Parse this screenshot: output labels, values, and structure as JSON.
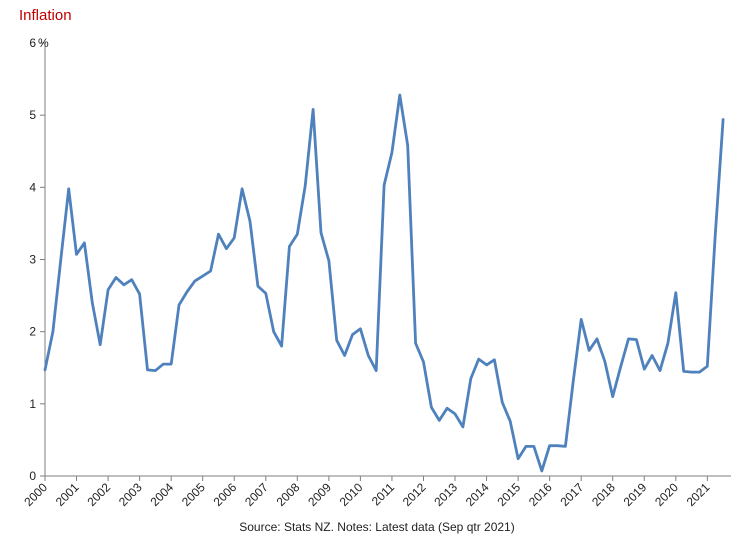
{
  "title": "Inflation",
  "source": "Source: Stats NZ. Notes: Latest data (Sep qtr 2021)",
  "colors": {
    "title": "#c00000",
    "line": "#4f81bd",
    "axis": "#7f7f7f"
  },
  "chart_data": {
    "type": "line",
    "title": "Inflation",
    "ylabel": "%",
    "xlabel": "",
    "ylim": [
      0,
      6
    ],
    "yticks": [
      0,
      1,
      2,
      3,
      4,
      5,
      6
    ],
    "xlim": [
      2000,
      2021.75
    ],
    "xticks": [
      "2000",
      "2001",
      "2002",
      "2003",
      "2004",
      "2005",
      "2006",
      "2007",
      "2008",
      "2009",
      "2010",
      "2011",
      "2012",
      "2013",
      "2014",
      "2015",
      "2016",
      "2017",
      "2018",
      "2019",
      "2020",
      "2021"
    ],
    "grid": false,
    "series": [
      {
        "frequency": "quarterly",
        "start": "2000 Q1",
        "values": [
          1.47,
          2.0,
          3.0,
          3.98,
          3.07,
          3.23,
          2.4,
          1.82,
          2.58,
          2.75,
          2.65,
          2.72,
          2.52,
          1.47,
          1.46,
          1.55,
          1.55,
          2.37,
          2.55,
          2.7,
          2.77,
          2.84,
          3.35,
          3.15,
          3.3,
          3.98,
          3.53,
          2.63,
          2.53,
          2.0,
          1.8,
          3.18,
          3.35,
          4.02,
          5.08,
          3.37,
          2.98,
          1.88,
          1.67,
          1.96,
          2.04,
          1.67,
          1.46,
          4.03,
          4.48,
          5.28,
          4.58,
          1.84,
          1.58,
          0.95,
          0.77,
          0.94,
          0.86,
          0.68,
          1.35,
          1.62,
          1.54,
          1.61,
          1.02,
          0.76,
          0.24,
          0.41,
          0.41,
          0.07,
          0.42,
          0.42,
          0.41,
          1.32,
          2.17,
          1.74,
          1.9,
          1.59,
          1.1,
          1.51,
          1.9,
          1.89,
          1.48,
          1.67,
          1.46,
          1.84,
          2.54,
          1.45,
          1.44,
          1.44,
          1.52,
          3.33,
          4.94
        ]
      }
    ]
  }
}
